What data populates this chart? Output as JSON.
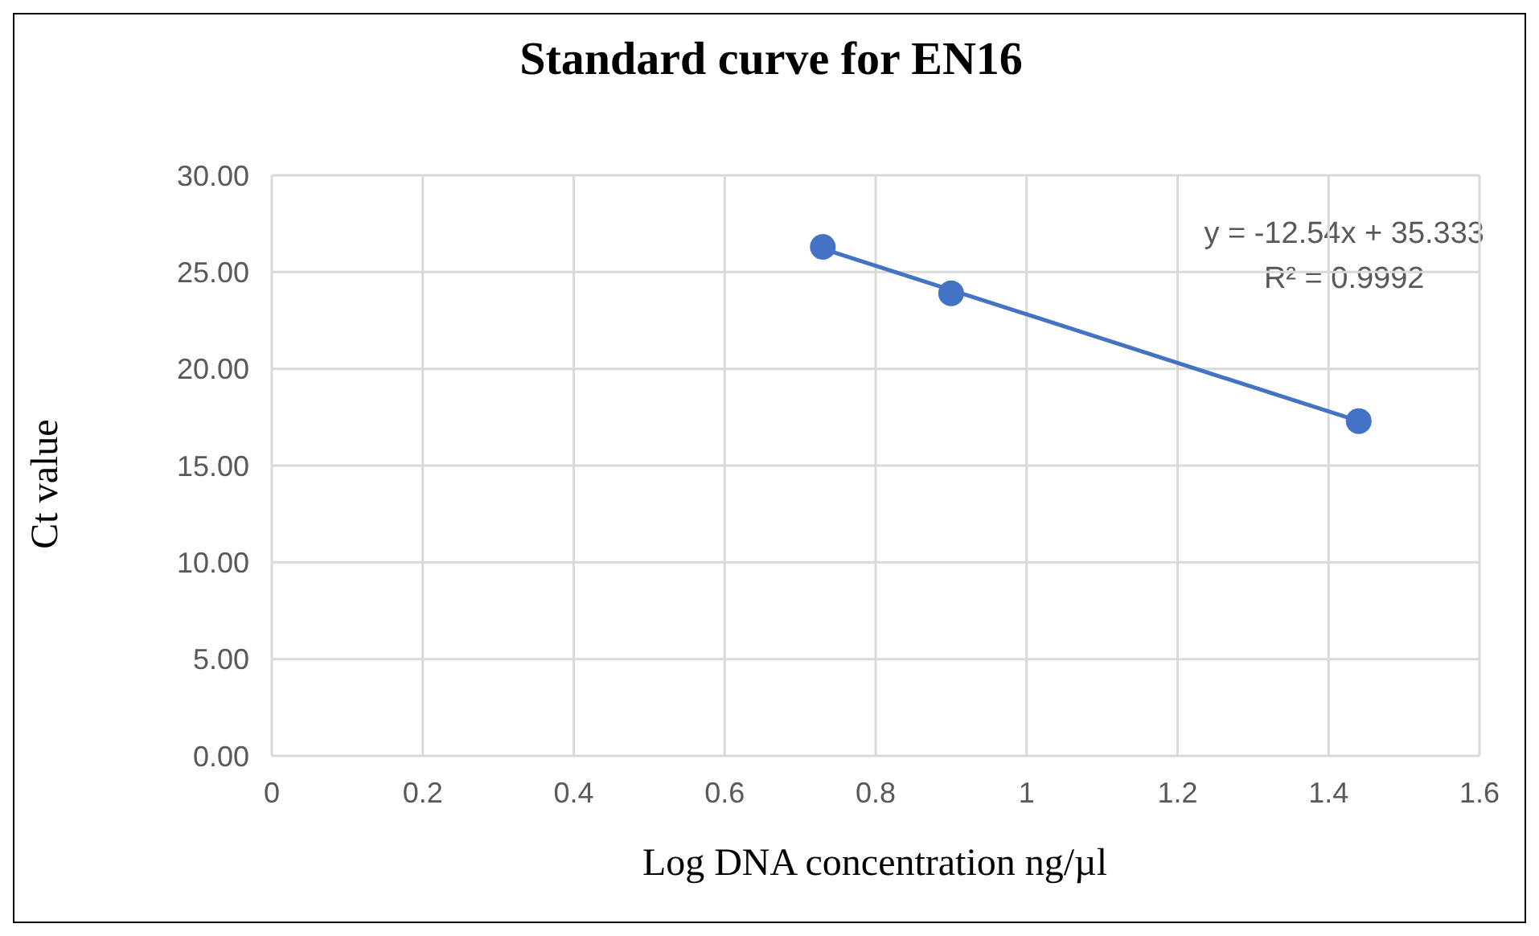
{
  "chart_data": {
    "type": "scatter",
    "title": "Standard curve for EN16",
    "xlabel": "Log DNA concentration ng/µl",
    "ylabel": "Ct value",
    "series": [
      {
        "type": "scatter",
        "color": "#4472c4",
        "marker": "circle",
        "x": [
          0.73,
          0.9,
          1.44
        ],
        "values": [
          26.3,
          23.9,
          17.3
        ]
      },
      {
        "type": "line",
        "color": "#4472c4",
        "marker": "none",
        "line_style": "solid",
        "x": [
          0.73,
          1.44
        ],
        "values": [
          26.2,
          17.3
        ]
      }
    ],
    "annotations": [
      "y = -12.54x + 35.333",
      "R² = 0.9992"
    ],
    "xlim": [
      0,
      1.6
    ],
    "xticks": [
      0,
      0.2,
      0.4,
      0.6,
      0.8,
      1,
      1.2,
      1.4,
      1.6
    ],
    "ylim": [
      0,
      30
    ],
    "yticks": [
      {
        "value": 0,
        "label": "0.00"
      },
      {
        "value": 5,
        "label": "5.00"
      },
      {
        "value": 10,
        "label": "10.00"
      },
      {
        "value": 15,
        "label": "15.00"
      },
      {
        "value": 20,
        "label": "20.00"
      },
      {
        "value": 25,
        "label": "25.00"
      },
      {
        "value": 30,
        "label": "30.00"
      }
    ],
    "grid": true
  }
}
